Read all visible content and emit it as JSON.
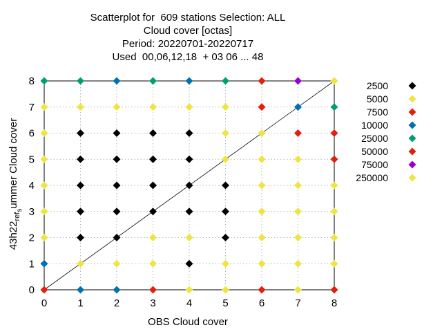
{
  "chart_data": {
    "type": "scatter",
    "title_lines": [
      "Scatterplot for  609 stations Selection: ALL",
      "Cloud cover [octas]",
      "Period: 20220701-20220717",
      "Used  00,06,12,18  + 03 06 ... 48"
    ],
    "xlabel": "OBS Cloud cover",
    "ylabel_parts": {
      "main": "43h22",
      "sub1": "ref",
      "sub2": "s",
      "rest": "ummer Cloud cover"
    },
    "xlim": [
      0,
      8
    ],
    "ylim": [
      0,
      8
    ],
    "x_ticks": [
      "0",
      "1",
      "2",
      "3",
      "4",
      "5",
      "6",
      "7",
      "8"
    ],
    "y_ticks": [
      "0",
      "1",
      "2",
      "3",
      "4",
      "5",
      "6",
      "7",
      "8"
    ],
    "grid": true,
    "diagonal_line": true,
    "legend_position": "right",
    "series": [
      {
        "name": "2500",
        "color": "#000000",
        "points": [
          [
            1,
            2
          ],
          [
            1,
            3
          ],
          [
            1,
            4
          ],
          [
            1,
            5
          ],
          [
            1,
            6
          ],
          [
            2,
            2
          ],
          [
            2,
            3
          ],
          [
            2,
            4
          ],
          [
            2,
            5
          ],
          [
            2,
            6
          ],
          [
            3,
            3
          ],
          [
            3,
            4
          ],
          [
            3,
            5
          ],
          [
            3,
            6
          ],
          [
            4,
            1
          ],
          [
            4,
            3
          ],
          [
            4,
            4
          ],
          [
            4,
            5
          ],
          [
            4,
            6
          ],
          [
            5,
            2
          ],
          [
            5,
            3
          ],
          [
            5,
            4
          ]
        ]
      },
      {
        "name": "5000",
        "color": "#f0e442",
        "points": [
          [
            0,
            2
          ],
          [
            0,
            3
          ],
          [
            0,
            4
          ],
          [
            0,
            5
          ],
          [
            0,
            6
          ],
          [
            0,
            7
          ],
          [
            1,
            1
          ],
          [
            1,
            7
          ],
          [
            2,
            1
          ],
          [
            2,
            7
          ],
          [
            3,
            1
          ],
          [
            3,
            2
          ],
          [
            3,
            7
          ],
          [
            4,
            0
          ],
          [
            4,
            2
          ],
          [
            4,
            7
          ],
          [
            5,
            0
          ],
          [
            5,
            1
          ],
          [
            5,
            5
          ],
          [
            5,
            6
          ],
          [
            5,
            7
          ],
          [
            6,
            1
          ],
          [
            6,
            2
          ],
          [
            6,
            3
          ],
          [
            6,
            4
          ],
          [
            6,
            5
          ],
          [
            6,
            6
          ],
          [
            7,
            0
          ],
          [
            7,
            1
          ],
          [
            7,
            2
          ],
          [
            7,
            3
          ],
          [
            7,
            4
          ],
          [
            7,
            5
          ],
          [
            8,
            1
          ],
          [
            8,
            2
          ],
          [
            8,
            3
          ],
          [
            8,
            4
          ],
          [
            8,
            8
          ]
        ]
      },
      {
        "name": "7500",
        "color": "#e51e10",
        "points": [
          [
            0,
            0
          ],
          [
            3,
            0
          ],
          [
            6,
            0
          ],
          [
            6,
            7
          ],
          [
            6,
            8
          ],
          [
            7,
            6
          ],
          [
            8,
            0
          ],
          [
            8,
            5
          ]
        ]
      },
      {
        "name": "10000",
        "color": "#0072b2",
        "points": [
          [
            0,
            1
          ],
          [
            1,
            0
          ],
          [
            2,
            0
          ],
          [
            2,
            8
          ],
          [
            4,
            8
          ],
          [
            7,
            7
          ]
        ]
      },
      {
        "name": "25000",
        "color": "#009e73",
        "points": [
          [
            0,
            8
          ],
          [
            1,
            8
          ],
          [
            3,
            8
          ],
          [
            5,
            8
          ],
          [
            8,
            7
          ]
        ]
      },
      {
        "name": "50000",
        "color": "#e51e10",
        "points": [
          [
            8,
            6
          ]
        ]
      },
      {
        "name": "75000",
        "color": "#9400d3",
        "points": [
          [
            7,
            8
          ]
        ]
      },
      {
        "name": "250000",
        "color": "#f0e442",
        "points": []
      }
    ]
  }
}
